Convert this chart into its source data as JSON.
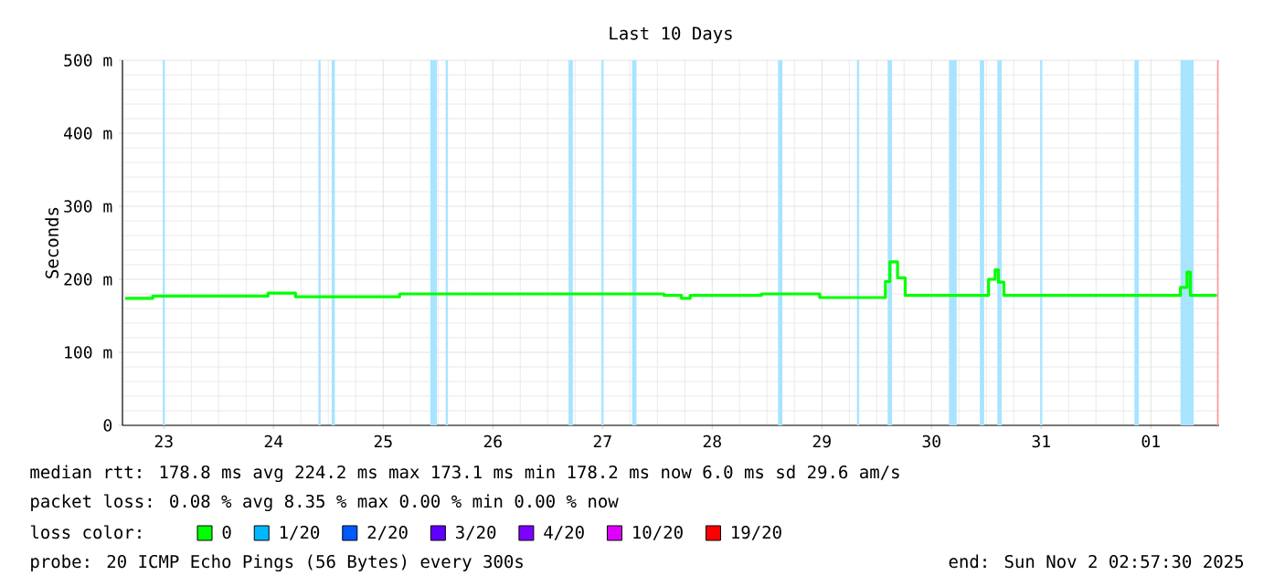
{
  "chart_data": {
    "type": "step",
    "title": "Last 10 Days",
    "ylabel": "Seconds",
    "xlim": [
      "2025-10-23T02:57",
      "2025-11-02T02:57"
    ],
    "xticks": [
      {
        "value": "2025-10-23T12:00",
        "label": "23"
      },
      {
        "value": "2025-10-24T12:00",
        "label": "24"
      },
      {
        "value": "2025-10-25T12:00",
        "label": "25"
      },
      {
        "value": "2025-10-26T12:00",
        "label": "26"
      },
      {
        "value": "2025-10-27T12:00",
        "label": "27"
      },
      {
        "value": "2025-10-28T12:00",
        "label": "28"
      },
      {
        "value": "2025-10-29T12:00",
        "label": "29"
      },
      {
        "value": "2025-10-30T12:00",
        "label": "30"
      },
      {
        "value": "2025-10-31T12:00",
        "label": "31"
      },
      {
        "value": "2025-11-01T12:00",
        "label": "01"
      }
    ],
    "ylim": [
      0,
      500
    ],
    "yticks": [
      0,
      {
        "value": 100,
        "label": "100 m"
      },
      {
        "value": 200,
        "label": "200 m"
      },
      {
        "value": 300,
        "label": "300 m"
      },
      {
        "value": 400,
        "label": "400 m"
      },
      {
        "value": 500,
        "label": "500 m"
      }
    ],
    "grid": true,
    "legend": "bottom",
    "legend_title": "loss color:",
    "series": [
      {
        "name": "0",
        "color": "#00ff00",
        "x": [
          "2025-10-23T03:36",
          "2025-10-23T09:36",
          "2025-10-23T16:48",
          "2025-10-24T10:48",
          "2025-10-24T16:48",
          "2025-10-25T15:36",
          "2025-10-28T01:26",
          "2025-10-28T05:17",
          "2025-10-28T07:12",
          "2025-10-28T22:48",
          "2025-10-29T11:31",
          "2025-10-30T01:55",
          "2025-10-30T02:53",
          "2025-10-30T04:34",
          "2025-10-30T06:14",
          "2025-10-31T00:29",
          "2025-10-31T01:55",
          "2025-10-31T02:38",
          "2025-10-31T03:50",
          "2025-11-01T18:29",
          "2025-11-01T19:55",
          "2025-11-01T20:38",
          "2025-11-02T02:24"
        ],
        "values": [
          174,
          177,
          177,
          181,
          176,
          180,
          178,
          174,
          178,
          180,
          175,
          197,
          224,
          202,
          178,
          200,
          213,
          196,
          178,
          189,
          210,
          178,
          178
        ]
      },
      {
        "name": "1/20",
        "color": "#00b8ff"
      },
      {
        "name": "2/20",
        "color": "#0059ff"
      },
      {
        "name": "3/20",
        "color": "#5e00ff"
      },
      {
        "name": "4/20",
        "color": "#7e00ff"
      },
      {
        "name": "10/20",
        "color": "#dd00ff"
      },
      {
        "name": "19/20",
        "color": "#ff0000"
      }
    ],
    "bands": [
      {
        "axis": "x",
        "from": "2025-10-23T11:46",
        "to": "2025-10-23T12:14",
        "color": "#a8e4ff"
      },
      {
        "axis": "x",
        "from": "2025-10-24T21:50",
        "to": "2025-10-24T22:19",
        "color": "#a8e4ff"
      },
      {
        "axis": "x",
        "from": "2025-10-25T00:43",
        "to": "2025-10-25T01:26",
        "color": "#a8e4ff"
      },
      {
        "axis": "x",
        "from": "2025-10-25T22:19",
        "to": "2025-10-25T23:46",
        "color": "#a8e4ff"
      },
      {
        "axis": "x",
        "from": "2025-10-26T01:41",
        "to": "2025-10-26T02:10",
        "color": "#a8e4ff"
      },
      {
        "axis": "x",
        "from": "2025-10-27T04:34",
        "to": "2025-10-27T05:31",
        "color": "#a8e4ff"
      },
      {
        "axis": "x",
        "from": "2025-10-27T11:46",
        "to": "2025-10-27T12:14",
        "color": "#a8e4ff"
      },
      {
        "axis": "x",
        "from": "2025-10-27T18:29",
        "to": "2025-10-27T19:26",
        "color": "#a8e4ff"
      },
      {
        "axis": "x",
        "from": "2025-10-29T02:24",
        "to": "2025-10-29T03:22",
        "color": "#a8e4ff"
      },
      {
        "axis": "x",
        "from": "2025-10-29T19:41",
        "to": "2025-10-29T20:10",
        "color": "#a8e4ff"
      },
      {
        "axis": "x",
        "from": "2025-10-30T02:24",
        "to": "2025-10-30T03:22",
        "color": "#a8e4ff"
      },
      {
        "axis": "x",
        "from": "2025-10-30T15:50",
        "to": "2025-10-30T17:31",
        "color": "#a8e4ff"
      },
      {
        "axis": "x",
        "from": "2025-10-30T22:34",
        "to": "2025-10-30T23:31",
        "color": "#a8e4ff"
      },
      {
        "axis": "x",
        "from": "2025-10-31T02:24",
        "to": "2025-10-31T03:22",
        "color": "#a8e4ff"
      },
      {
        "axis": "x",
        "from": "2025-10-31T11:46",
        "to": "2025-10-31T12:14",
        "color": "#a8e4ff"
      },
      {
        "axis": "x",
        "from": "2025-11-01T08:24",
        "to": "2025-11-01T09:22",
        "color": "#a8e4ff"
      },
      {
        "axis": "x",
        "from": "2025-11-01T18:29",
        "to": "2025-11-01T21:22",
        "color": "#a8e4ff"
      },
      {
        "axis": "x",
        "from": "2025-11-02T02:29",
        "to": "2025-11-02T02:50",
        "color": "#ff9999"
      }
    ],
    "annotations": [
      "median rtt:  178.8 ms avg  224.2 ms max  173.1 ms min  178.2 ms now  6.0 ms sd  29.6   am/s",
      "packet loss: 0.08 % avg  8.35 % max  0.00 % min  0.00 % now",
      "probe:       20 ICMP Echo Pings (56 Bytes) every 300s",
      "end: Sun Nov  2 02:57:30 2025"
    ]
  }
}
